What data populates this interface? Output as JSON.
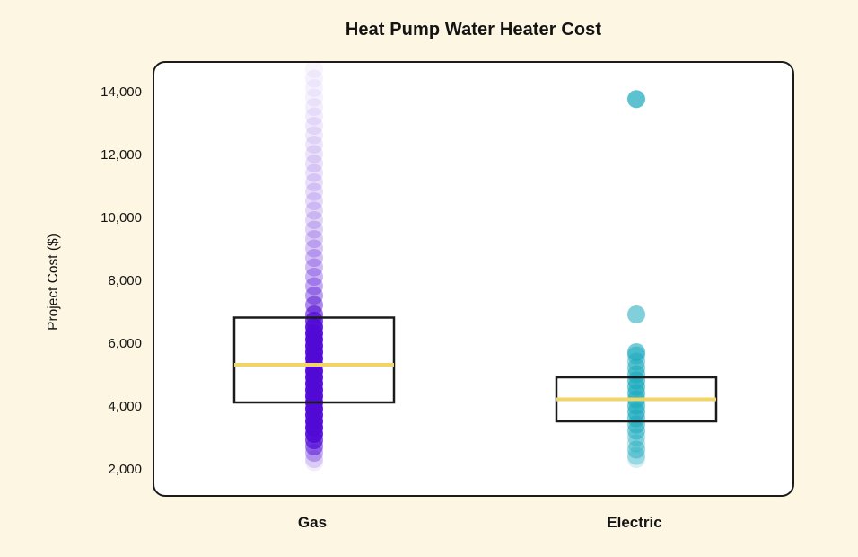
{
  "chart_data": {
    "type": "box+strip",
    "title": "Heat Pump Water Heater Cost",
    "ylabel": "Project Cost ($)",
    "xlabel": "",
    "ylim": [
      2000,
      14000
    ],
    "grid": false,
    "legend": "none",
    "y_ticks": [
      {
        "value": 14000,
        "label": "14,000"
      },
      {
        "value": 12000,
        "label": "12,000"
      },
      {
        "value": 10000,
        "label": "10,000"
      },
      {
        "value": 8000,
        "label": "8,000"
      },
      {
        "value": 6000,
        "label": "6,000"
      },
      {
        "value": 4000,
        "label": "4,000"
      },
      {
        "value": 2000,
        "label": "2,000"
      }
    ],
    "categories": [
      "Gas",
      "Electric"
    ],
    "series": [
      {
        "name": "Gas",
        "point_color": "#5109D6",
        "box": {
          "q1": 4200,
          "median": 5400,
          "q3": 6900
        },
        "points_value_opacity": [
          [
            14800,
            0.04
          ],
          [
            14500,
            0.05
          ],
          [
            14200,
            0.05
          ],
          [
            13900,
            0.06
          ],
          [
            13600,
            0.07
          ],
          [
            13300,
            0.08
          ],
          [
            13000,
            0.09
          ],
          [
            12700,
            0.09
          ],
          [
            12400,
            0.1
          ],
          [
            12100,
            0.11
          ],
          [
            11800,
            0.12
          ],
          [
            11500,
            0.12
          ],
          [
            11200,
            0.13
          ],
          [
            10900,
            0.14
          ],
          [
            10600,
            0.15
          ],
          [
            10300,
            0.16
          ],
          [
            10000,
            0.17
          ],
          [
            9700,
            0.19
          ],
          [
            9400,
            0.21
          ],
          [
            9100,
            0.23
          ],
          [
            8800,
            0.25
          ],
          [
            8500,
            0.27
          ],
          [
            8200,
            0.3
          ],
          [
            7900,
            0.34
          ],
          [
            7600,
            0.4
          ],
          [
            7300,
            0.48
          ],
          [
            7000,
            0.6
          ],
          [
            6800,
            0.75
          ],
          [
            6600,
            0.9
          ],
          [
            6400,
            0.95
          ],
          [
            6200,
            0.95
          ],
          [
            6000,
            0.95
          ],
          [
            5800,
            0.95
          ],
          [
            5600,
            0.95
          ],
          [
            5400,
            0.95
          ],
          [
            5200,
            0.95
          ],
          [
            5000,
            0.95
          ],
          [
            4800,
            0.95
          ],
          [
            4600,
            0.95
          ],
          [
            4400,
            0.95
          ],
          [
            4200,
            0.95
          ],
          [
            4000,
            0.95
          ],
          [
            3800,
            0.95
          ],
          [
            3600,
            0.95
          ],
          [
            3400,
            0.95
          ],
          [
            3200,
            0.9
          ],
          [
            3000,
            0.7
          ],
          [
            2800,
            0.5
          ],
          [
            2600,
            0.3
          ],
          [
            2400,
            0.15
          ],
          [
            2300,
            0.07
          ]
        ]
      },
      {
        "name": "Electric",
        "point_color": "#17A8BC",
        "box": {
          "q1": 3600,
          "median": 4300,
          "q3": 5000
        },
        "points_value_opacity": [
          [
            13850,
            0.7
          ],
          [
            7000,
            0.55
          ],
          [
            5800,
            0.6
          ],
          [
            5700,
            0.45
          ],
          [
            5500,
            0.45
          ],
          [
            5300,
            0.5
          ],
          [
            5100,
            0.55
          ],
          [
            4900,
            0.6
          ],
          [
            4700,
            0.6
          ],
          [
            4500,
            0.6
          ],
          [
            4300,
            0.6
          ],
          [
            4100,
            0.6
          ],
          [
            3900,
            0.6
          ],
          [
            3700,
            0.55
          ],
          [
            3500,
            0.5
          ],
          [
            3300,
            0.5
          ],
          [
            3100,
            0.35
          ],
          [
            2900,
            0.3
          ],
          [
            2700,
            0.45
          ],
          [
            2500,
            0.3
          ],
          [
            2400,
            0.18
          ]
        ]
      }
    ],
    "colors": {
      "background": "#FDF6E3",
      "plot_background": "#FFFFFF",
      "box_border": "#1b1b1b",
      "median_line": "#F2D567",
      "text": "#141414"
    }
  }
}
